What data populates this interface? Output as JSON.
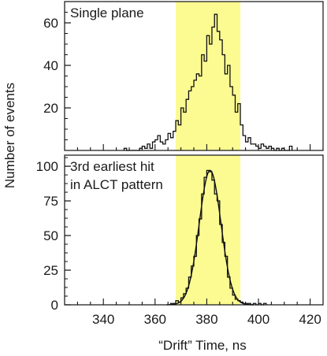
{
  "chart_data": [
    {
      "type": "histogram",
      "annotation": [
        "Single plane"
      ],
      "xlim": [
        325,
        425
      ],
      "ylim": [
        0,
        70
      ],
      "xticks": [
        340,
        360,
        380,
        400,
        420
      ],
      "yticks": [
        20,
        40,
        60
      ],
      "highlight_band": {
        "x_range": [
          368,
          393
        ],
        "color": "#fbfb92"
      },
      "bin_width": 1,
      "bins": [
        [
          348,
          1
        ],
        [
          349,
          0
        ],
        [
          350,
          0
        ],
        [
          351,
          0
        ],
        [
          352,
          0
        ],
        [
          353,
          0
        ],
        [
          354,
          1
        ],
        [
          355,
          2
        ],
        [
          356,
          1
        ],
        [
          357,
          3
        ],
        [
          358,
          1
        ],
        [
          359,
          4
        ],
        [
          360,
          5
        ],
        [
          361,
          7
        ],
        [
          362,
          4
        ],
        [
          363,
          3
        ],
        [
          364,
          5
        ],
        [
          365,
          8
        ],
        [
          366,
          6
        ],
        [
          367,
          9
        ],
        [
          368,
          14
        ],
        [
          369,
          12
        ],
        [
          370,
          20
        ],
        [
          371,
          18
        ],
        [
          372,
          24
        ],
        [
          373,
          28
        ],
        [
          374,
          30
        ],
        [
          375,
          33
        ],
        [
          376,
          36
        ],
        [
          377,
          35
        ],
        [
          378,
          45
        ],
        [
          379,
          42
        ],
        [
          380,
          54
        ],
        [
          381,
          50
        ],
        [
          382,
          58
        ],
        [
          383,
          64
        ],
        [
          384,
          56
        ],
        [
          385,
          52
        ],
        [
          386,
          45
        ],
        [
          387,
          36
        ],
        [
          388,
          40
        ],
        [
          389,
          30
        ],
        [
          390,
          26
        ],
        [
          391,
          18
        ],
        [
          392,
          22
        ],
        [
          393,
          12
        ],
        [
          394,
          7
        ],
        [
          395,
          4
        ],
        [
          396,
          6
        ],
        [
          397,
          3
        ],
        [
          398,
          3
        ],
        [
          399,
          2
        ],
        [
          400,
          1
        ],
        [
          401,
          3
        ],
        [
          402,
          2
        ],
        [
          403,
          1
        ],
        [
          404,
          2
        ],
        [
          405,
          1
        ],
        [
          406,
          0
        ],
        [
          407,
          1
        ],
        [
          408,
          0
        ],
        [
          409,
          1
        ],
        [
          410,
          0
        ],
        [
          411,
          0
        ],
        [
          412,
          2
        ]
      ]
    },
    {
      "type": "histogram",
      "annotation": [
        "3rd earliest hit",
        "in ALCT pattern"
      ],
      "xlim": [
        325,
        425
      ],
      "ylim": [
        0,
        108
      ],
      "xticks": [
        340,
        360,
        380,
        400,
        420
      ],
      "yticks": [
        0,
        25,
        50,
        75,
        100
      ],
      "highlight_band": {
        "x_range": [
          368,
          393
        ],
        "color": "#fbfb92"
      },
      "bin_width": 1,
      "bins": [
        [
          366,
          1
        ],
        [
          367,
          1
        ],
        [
          368,
          3
        ],
        [
          369,
          2
        ],
        [
          370,
          5
        ],
        [
          371,
          8
        ],
        [
          372,
          12
        ],
        [
          373,
          20
        ],
        [
          374,
          28
        ],
        [
          375,
          35
        ],
        [
          376,
          50
        ],
        [
          377,
          62
        ],
        [
          378,
          80
        ],
        [
          379,
          92
        ],
        [
          380,
          97
        ],
        [
          381,
          96
        ],
        [
          382,
          90
        ],
        [
          383,
          80
        ],
        [
          384,
          75
        ],
        [
          385,
          58
        ],
        [
          386,
          45
        ],
        [
          387,
          35
        ],
        [
          388,
          20
        ],
        [
          389,
          12
        ],
        [
          390,
          7
        ],
        [
          391,
          4
        ],
        [
          392,
          3
        ],
        [
          393,
          2
        ],
        [
          394,
          1
        ],
        [
          395,
          1
        ],
        [
          396,
          1
        ],
        [
          397,
          0
        ],
        [
          398,
          1
        ],
        [
          399,
          0
        ],
        [
          400,
          1
        ],
        [
          401,
          0
        ],
        [
          402,
          1
        ]
      ],
      "fit": {
        "mean": 380.8,
        "sigma": 4.2,
        "amplitude": 97
      }
    }
  ],
  "shared": {
    "xlabel": "“Drift” Time, ns",
    "ylabel": "Number of events"
  }
}
